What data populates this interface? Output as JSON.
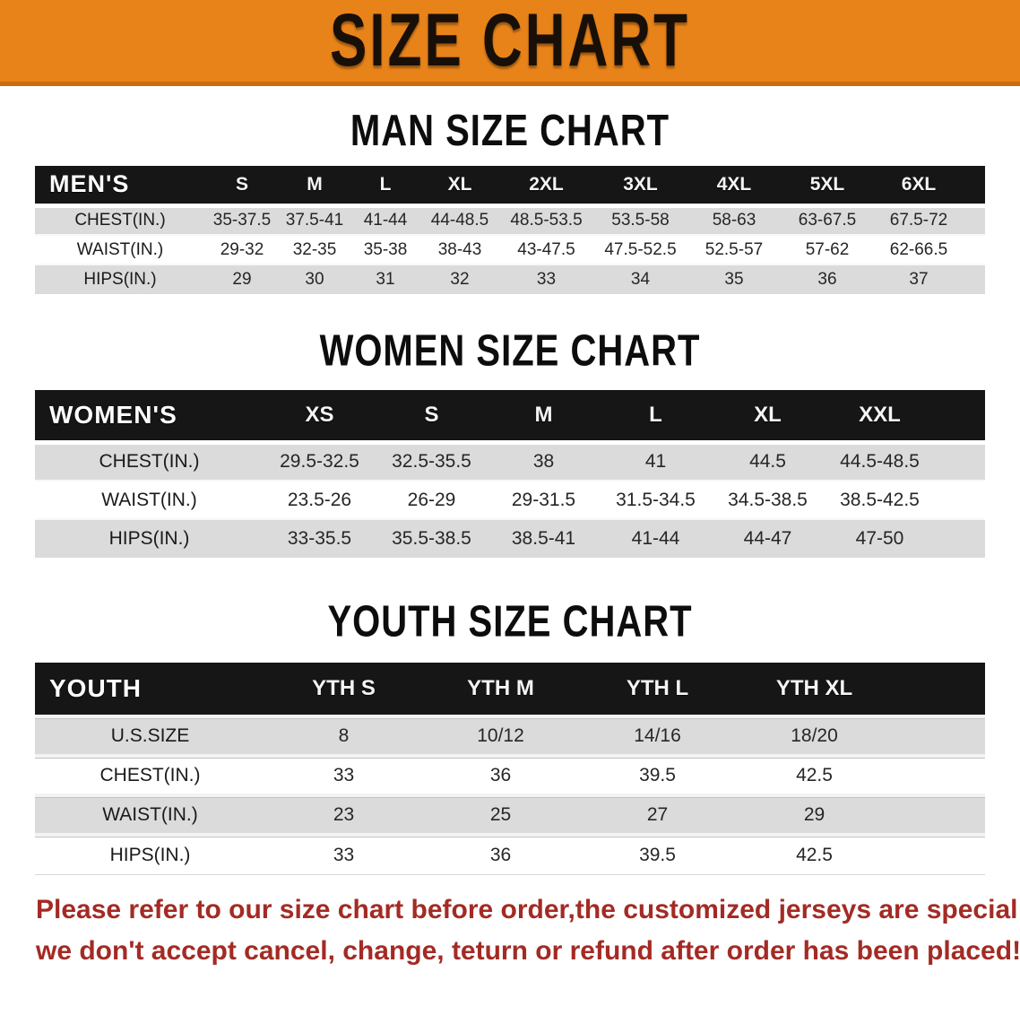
{
  "banner": {
    "title": "SIZE CHART"
  },
  "sections": {
    "men": {
      "title": "MAN SIZE CHART",
      "header_label": "MEN'S",
      "columns": [
        "S",
        "M",
        "L",
        "XL",
        "2XL",
        "3XL",
        "4XL",
        "5XL",
        "6XL"
      ],
      "rows": [
        {
          "label": "CHEST(IN.)",
          "values": [
            "35-37.5",
            "37.5-41",
            "41-44",
            "44-48.5",
            "48.5-53.5",
            "53.5-58",
            "58-63",
            "63-67.5",
            "67.5-72"
          ]
        },
        {
          "label": "WAIST(IN.)",
          "values": [
            "29-32",
            "32-35",
            "35-38",
            "38-43",
            "43-47.5",
            "47.5-52.5",
            "52.5-57",
            "57-62",
            "62-66.5"
          ]
        },
        {
          "label": "HIPS(IN.)",
          "values": [
            "29",
            "30",
            "31",
            "32",
            "33",
            "34",
            "35",
            "36",
            "37"
          ]
        }
      ]
    },
    "women": {
      "title": "WOMEN SIZE CHART",
      "header_label": "WOMEN'S",
      "columns": [
        "XS",
        "S",
        "M",
        "L",
        "XL",
        "XXL"
      ],
      "rows": [
        {
          "label": "CHEST(IN.)",
          "values": [
            "29.5-32.5",
            "32.5-35.5",
            "38",
            "41",
            "44.5",
            "44.5-48.5"
          ]
        },
        {
          "label": "WAIST(IN.)",
          "values": [
            "23.5-26",
            "26-29",
            "29-31.5",
            "31.5-34.5",
            "34.5-38.5",
            "38.5-42.5"
          ]
        },
        {
          "label": "HIPS(IN.)",
          "values": [
            "33-35.5",
            "35.5-38.5",
            "38.5-41",
            "41-44",
            "44-47",
            "47-50"
          ]
        }
      ]
    },
    "youth": {
      "title": "YOUTH SIZE CHART",
      "header_label": "YOUTH",
      "columns": [
        "YTH S",
        "YTH M",
        "YTH L",
        "YTH XL"
      ],
      "rows": [
        {
          "label": "U.S.SIZE",
          "values": [
            "8",
            "10/12",
            "14/16",
            "18/20"
          ]
        },
        {
          "label": "CHEST(IN.)",
          "values": [
            "33",
            "36",
            "39.5",
            "42.5"
          ]
        },
        {
          "label": "WAIST(IN.)",
          "values": [
            "23",
            "25",
            "27",
            "29"
          ]
        },
        {
          "label": "HIPS(IN.)",
          "values": [
            "33",
            "36",
            "39.5",
            "42.5"
          ]
        }
      ]
    }
  },
  "footer_note": {
    "lines": [
      "Please refer to our size chart before order,the customized jerseys are special products,",
      "we don't accept cancel, change, teturn or refund after order has been placed!"
    ]
  },
  "colors": {
    "banner_bg": "#E8831A",
    "banner_edge": "#C96E0E",
    "band_bg": "#161616",
    "row_shade": "#DBDBDB",
    "note_color": "#A32B24"
  }
}
